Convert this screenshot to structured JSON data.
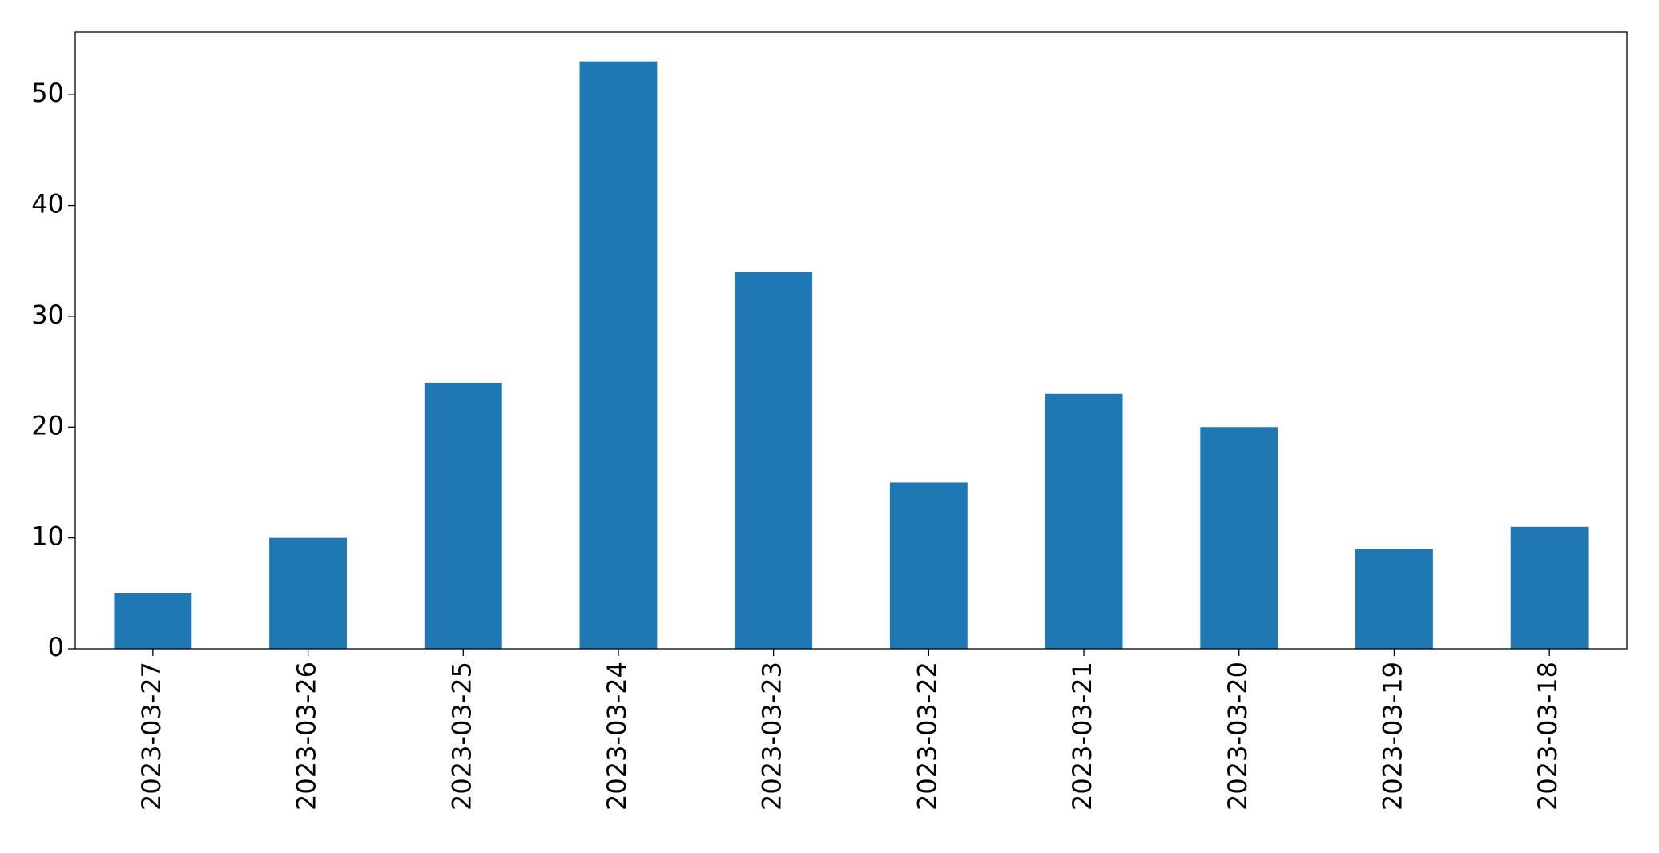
{
  "chart_data": {
    "type": "bar",
    "categories": [
      "2023-03-27",
      "2023-03-26",
      "2023-03-25",
      "2023-03-24",
      "2023-03-23",
      "2023-03-22",
      "2023-03-21",
      "2023-03-20",
      "2023-03-19",
      "2023-03-18"
    ],
    "values": [
      5,
      10,
      24,
      53,
      34,
      15,
      23,
      20,
      9,
      11
    ],
    "color": "#1f77b4",
    "ylim": [
      0,
      55.65
    ],
    "yticks": [
      0,
      10,
      20,
      30,
      40,
      50
    ],
    "grid": false
  }
}
